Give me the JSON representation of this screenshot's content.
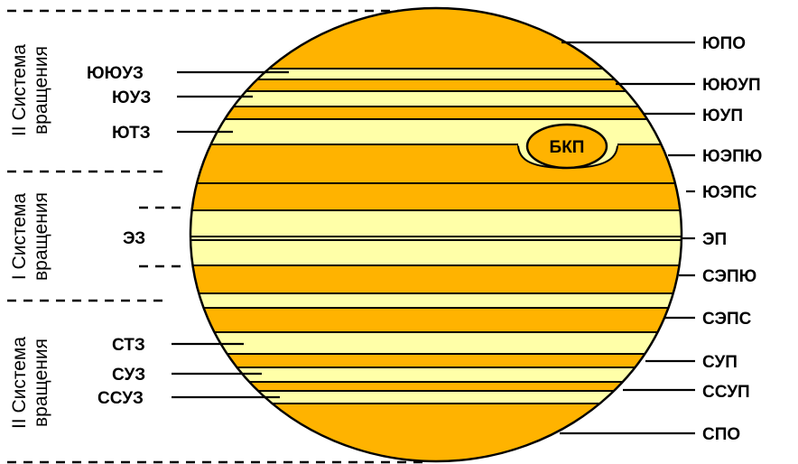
{
  "system_labels": {
    "top": [
      "II Система",
      "вращения"
    ],
    "middle": [
      "I Система",
      "вращения"
    ],
    "bottom": [
      "II Система",
      "вращения"
    ]
  },
  "left_labels": {
    "yuyuz": "ЮЮУЗ",
    "yuz": "ЮУЗ",
    "yutz": "ЮТЗ",
    "ez": "ЭЗ",
    "stz": "СТЗ",
    "suz": "СУЗ",
    "ssuz": "ССУЗ"
  },
  "right_labels": {
    "yupo": "ЮПО",
    "yuyup": "ЮЮУП",
    "yup": "ЮУП",
    "yuepyu": "ЮЭПЮ",
    "yueps": "ЮЭПС",
    "ep": "ЭП",
    "sepyu": "СЭПЮ",
    "seps": "СЭПС",
    "sup": "СУП",
    "ssup": "ССУП",
    "spo": "СПО"
  },
  "spot_label": "БКП",
  "colors": {
    "zone": "#FFFFA8",
    "belt": "#FFB300",
    "line": "#000000"
  }
}
